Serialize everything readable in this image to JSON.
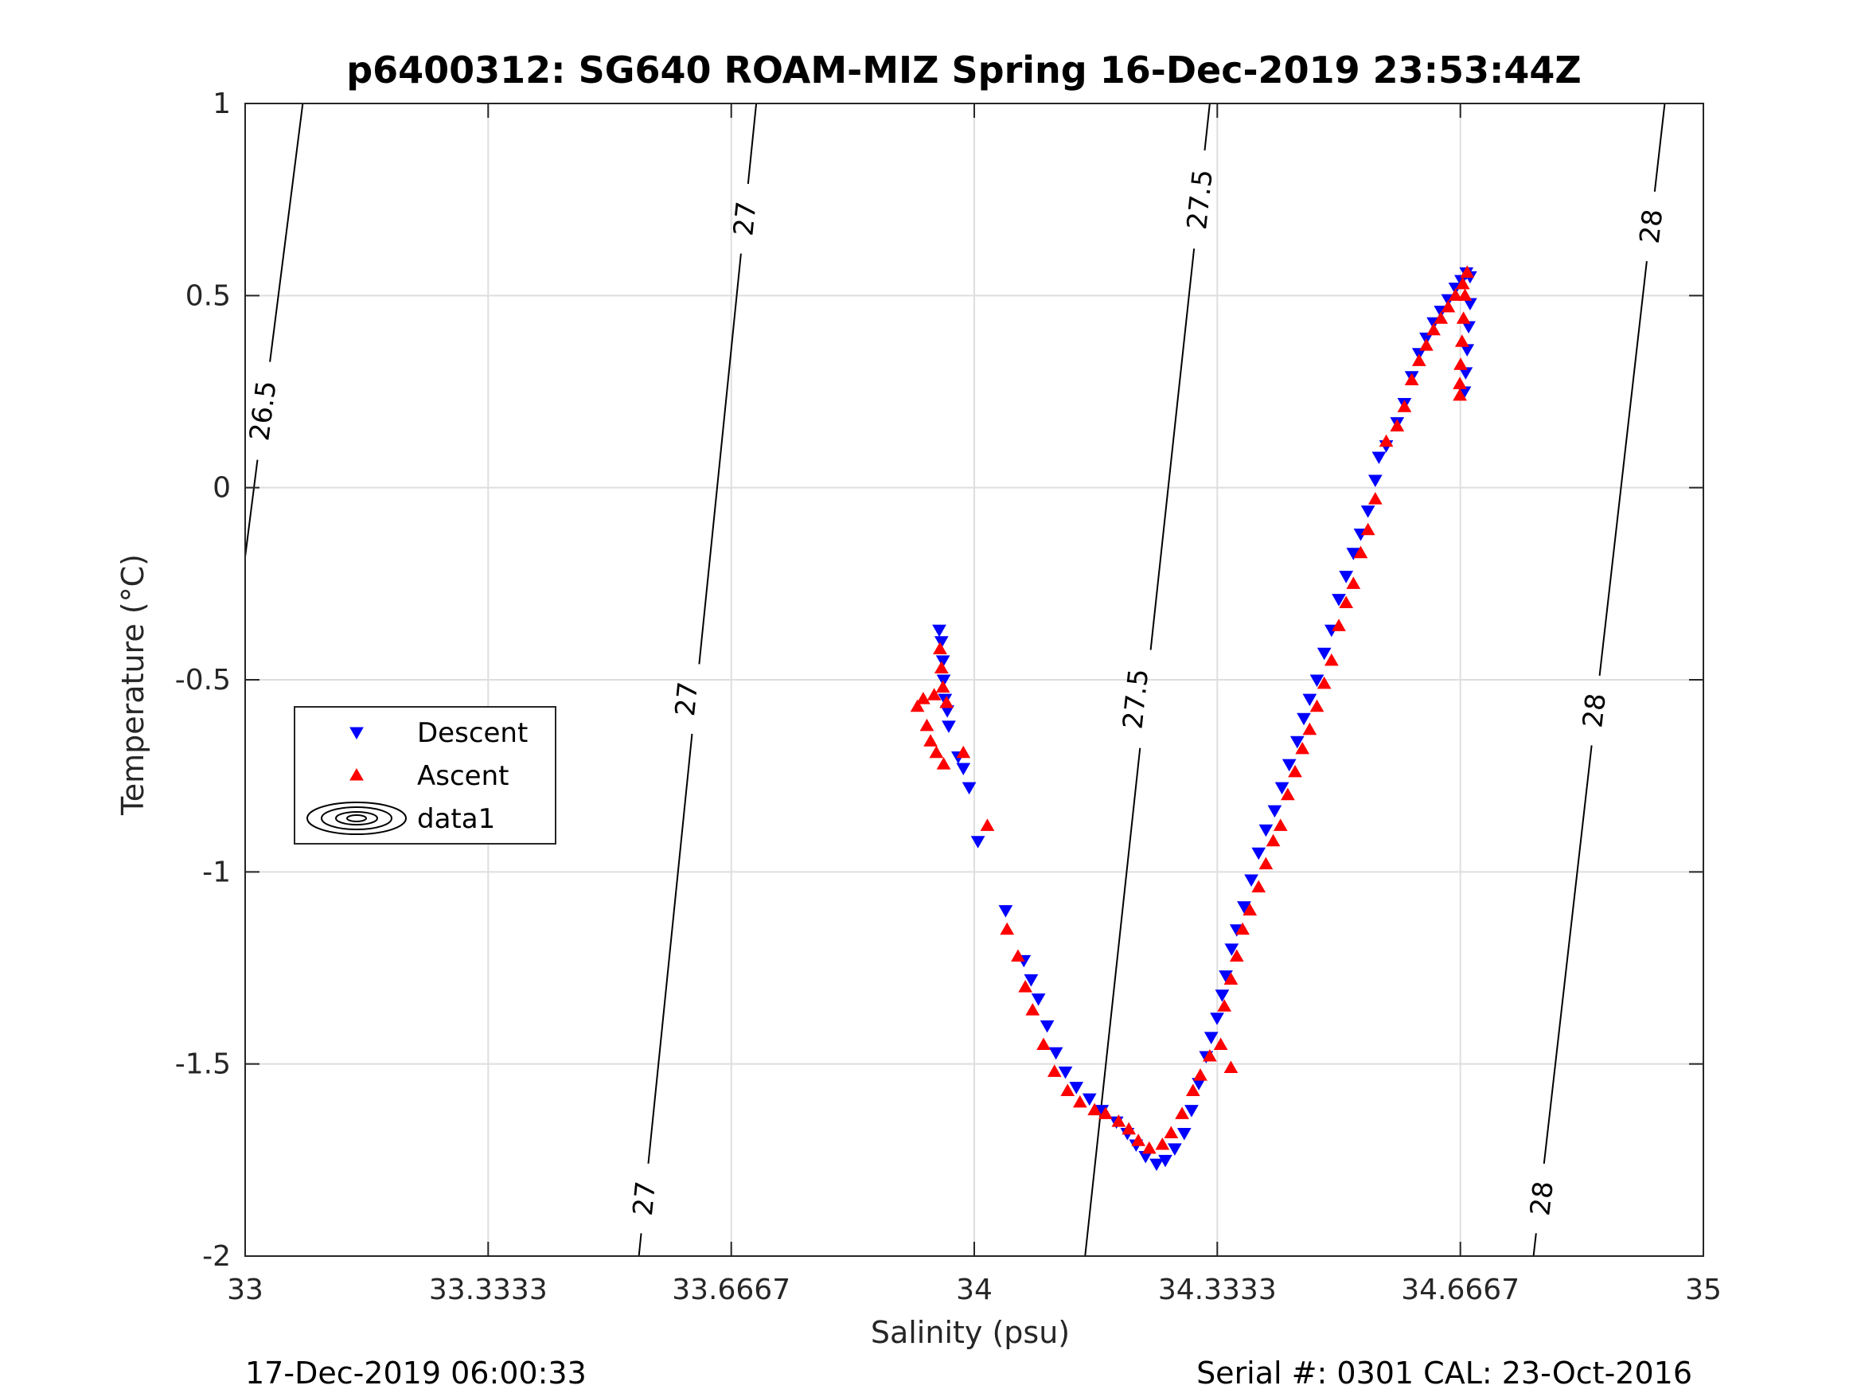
{
  "chart_data": {
    "type": "scatter",
    "title": "p6400312: SG640 ROAM-MIZ Spring 16-Dec-2019 23:53:44Z",
    "xlabel": "Salinity (psu)",
    "ylabel": "Temperature (°C)",
    "xlim": [
      33,
      35
    ],
    "ylim": [
      -2,
      1
    ],
    "xticks": [
      33,
      33.3333,
      33.6667,
      34,
      34.3333,
      34.6667,
      35
    ],
    "xtick_labels": [
      "33",
      "33.3333",
      "33.6667",
      "34",
      "34.3333",
      "34.6667",
      "35"
    ],
    "yticks": [
      1,
      0.5,
      0,
      -0.5,
      -1,
      -1.5,
      -2
    ],
    "ytick_labels": [
      "1",
      "0.5",
      "0",
      "-0.5",
      "-1",
      "-1.5",
      "-2"
    ],
    "grid": true,
    "legend_position": "left",
    "legend": [
      "Descent",
      "Ascent",
      "data1"
    ],
    "density_contours": {
      "name": "data1",
      "levels": [
        {
          "level": 26.5,
          "label": "26.5",
          "points": [
            [
              33.0,
              -0.18
            ],
            [
              33.079,
              1.0
            ]
          ]
        },
        {
          "level": 27,
          "label": "27",
          "points": [
            [
              33.54,
              -2.0
            ],
            [
              33.701,
              1.0
            ]
          ]
        },
        {
          "level": 27.5,
          "label": "27.5",
          "points": [
            [
              34.152,
              -2.0
            ],
            [
              34.323,
              1.0
            ]
          ]
        },
        {
          "level": 28,
          "label": "28",
          "points": [
            [
              34.767,
              -2.0
            ],
            [
              34.947,
              1.0
            ]
          ]
        }
      ],
      "label_positions": [
        {
          "level": "26.5",
          "s": 33.025,
          "t": 0.2
        },
        {
          "level": "27",
          "s": 33.686,
          "t": 0.7
        },
        {
          "level": "27",
          "s": 33.606,
          "t": -0.55
        },
        {
          "level": "27",
          "s": 33.548,
          "t": -1.85
        },
        {
          "level": "27.5",
          "s": 34.31,
          "t": 0.75
        },
        {
          "level": "27.5",
          "s": 34.222,
          "t": -0.55
        },
        {
          "level": "28",
          "s": 34.929,
          "t": 0.68
        },
        {
          "level": "28",
          "s": 34.851,
          "t": -0.58
        },
        {
          "level": "28",
          "s": 34.779,
          "t": -1.85
        }
      ]
    },
    "series": [
      {
        "name": "Descent",
        "color": "#0000ff",
        "marker": "triangle-down",
        "points": [
          [
            33.952,
            -0.37
          ],
          [
            33.955,
            -0.4
          ],
          [
            33.957,
            -0.45
          ],
          [
            33.958,
            -0.5
          ],
          [
            33.96,
            -0.55
          ],
          [
            33.963,
            -0.58
          ],
          [
            33.965,
            -0.62
          ],
          [
            33.978,
            -0.7
          ],
          [
            33.985,
            -0.73
          ],
          [
            33.993,
            -0.78
          ],
          [
            34.005,
            -0.92
          ],
          [
            34.043,
            -1.1
          ],
          [
            34.068,
            -1.23
          ],
          [
            34.078,
            -1.28
          ],
          [
            34.088,
            -1.33
          ],
          [
            34.1,
            -1.4
          ],
          [
            34.112,
            -1.47
          ],
          [
            34.125,
            -1.52
          ],
          [
            34.14,
            -1.56
          ],
          [
            34.158,
            -1.59
          ],
          [
            34.175,
            -1.62
          ],
          [
            34.195,
            -1.65
          ],
          [
            34.21,
            -1.68
          ],
          [
            34.222,
            -1.71
          ],
          [
            34.235,
            -1.74
          ],
          [
            34.25,
            -1.76
          ],
          [
            34.262,
            -1.75
          ],
          [
            34.275,
            -1.72
          ],
          [
            34.288,
            -1.68
          ],
          [
            34.298,
            -1.62
          ],
          [
            34.308,
            -1.55
          ],
          [
            34.318,
            -1.48
          ],
          [
            34.325,
            -1.43
          ],
          [
            34.333,
            -1.38
          ],
          [
            34.34,
            -1.32
          ],
          [
            34.345,
            -1.27
          ],
          [
            34.353,
            -1.2
          ],
          [
            34.36,
            -1.15
          ],
          [
            34.37,
            -1.09
          ],
          [
            34.38,
            -1.02
          ],
          [
            34.39,
            -0.95
          ],
          [
            34.4,
            -0.89
          ],
          [
            34.412,
            -0.84
          ],
          [
            34.422,
            -0.78
          ],
          [
            34.432,
            -0.72
          ],
          [
            34.443,
            -0.66
          ],
          [
            34.452,
            -0.6
          ],
          [
            34.46,
            -0.55
          ],
          [
            34.47,
            -0.5
          ],
          [
            34.48,
            -0.43
          ],
          [
            34.49,
            -0.37
          ],
          [
            34.5,
            -0.29
          ],
          [
            34.51,
            -0.23
          ],
          [
            34.52,
            -0.17
          ],
          [
            34.53,
            -0.12
          ],
          [
            34.54,
            -0.06
          ],
          [
            34.55,
            0.02
          ],
          [
            34.555,
            0.08
          ],
          [
            34.565,
            0.11
          ],
          [
            34.58,
            0.17
          ],
          [
            34.59,
            0.22
          ],
          [
            34.6,
            0.29
          ],
          [
            34.61,
            0.35
          ],
          [
            34.62,
            0.39
          ],
          [
            34.63,
            0.43
          ],
          [
            34.64,
            0.46
          ],
          [
            34.65,
            0.49
          ],
          [
            34.66,
            0.52
          ],
          [
            34.668,
            0.54
          ],
          [
            34.675,
            0.56
          ],
          [
            34.68,
            0.55
          ],
          [
            34.68,
            0.48
          ],
          [
            34.678,
            0.42
          ],
          [
            34.676,
            0.36
          ],
          [
            34.674,
            0.3
          ],
          [
            34.672,
            0.25
          ]
        ]
      },
      {
        "name": "Ascent",
        "color": "#ff0000",
        "marker": "triangle-up",
        "points": [
          [
            33.922,
            -0.57
          ],
          [
            33.93,
            -0.55
          ],
          [
            33.935,
            -0.62
          ],
          [
            33.94,
            -0.66
          ],
          [
            33.945,
            -0.54
          ],
          [
            33.948,
            -0.69
          ],
          [
            33.953,
            -0.42
          ],
          [
            33.955,
            -0.47
          ],
          [
            33.957,
            -0.52
          ],
          [
            33.958,
            -0.72
          ],
          [
            33.962,
            -0.56
          ],
          [
            33.985,
            -0.69
          ],
          [
            34.018,
            -0.88
          ],
          [
            34.045,
            -1.15
          ],
          [
            34.06,
            -1.22
          ],
          [
            34.07,
            -1.3
          ],
          [
            34.08,
            -1.36
          ],
          [
            34.095,
            -1.45
          ],
          [
            34.11,
            -1.52
          ],
          [
            34.128,
            -1.57
          ],
          [
            34.145,
            -1.6
          ],
          [
            34.165,
            -1.62
          ],
          [
            34.18,
            -1.63
          ],
          [
            34.198,
            -1.65
          ],
          [
            34.212,
            -1.67
          ],
          [
            34.225,
            -1.7
          ],
          [
            34.24,
            -1.72
          ],
          [
            34.258,
            -1.71
          ],
          [
            34.27,
            -1.68
          ],
          [
            34.285,
            -1.63
          ],
          [
            34.3,
            -1.57
          ],
          [
            34.31,
            -1.53
          ],
          [
            34.323,
            -1.48
          ],
          [
            34.338,
            -1.45
          ],
          [
            34.352,
            -1.51
          ],
          [
            34.343,
            -1.35
          ],
          [
            34.352,
            -1.28
          ],
          [
            34.36,
            -1.22
          ],
          [
            34.368,
            -1.15
          ],
          [
            34.378,
            -1.1
          ],
          [
            34.39,
            -1.04
          ],
          [
            34.4,
            -0.98
          ],
          [
            34.41,
            -0.92
          ],
          [
            34.42,
            -0.88
          ],
          [
            34.43,
            -0.8
          ],
          [
            34.44,
            -0.74
          ],
          [
            34.45,
            -0.68
          ],
          [
            34.46,
            -0.63
          ],
          [
            34.47,
            -0.57
          ],
          [
            34.48,
            -0.51
          ],
          [
            34.49,
            -0.45
          ],
          [
            34.5,
            -0.36
          ],
          [
            34.51,
            -0.3
          ],
          [
            34.52,
            -0.25
          ],
          [
            34.53,
            -0.17
          ],
          [
            34.54,
            -0.11
          ],
          [
            34.55,
            -0.03
          ],
          [
            34.565,
            0.12
          ],
          [
            34.58,
            0.16
          ],
          [
            34.59,
            0.21
          ],
          [
            34.6,
            0.28
          ],
          [
            34.61,
            0.33
          ],
          [
            34.62,
            0.37
          ],
          [
            34.63,
            0.41
          ],
          [
            34.64,
            0.44
          ],
          [
            34.65,
            0.47
          ],
          [
            34.66,
            0.5
          ],
          [
            34.67,
            0.53
          ],
          [
            34.676,
            0.56
          ],
          [
            34.673,
            0.5
          ],
          [
            34.671,
            0.44
          ],
          [
            34.669,
            0.38
          ],
          [
            34.667,
            0.32
          ],
          [
            34.666,
            0.27
          ],
          [
            34.666,
            0.24
          ]
        ]
      }
    ]
  },
  "footer": {
    "left": "17-Dec-2019 06:00:33",
    "right": "Serial #: 0301  CAL: 23-Oct-2016"
  }
}
